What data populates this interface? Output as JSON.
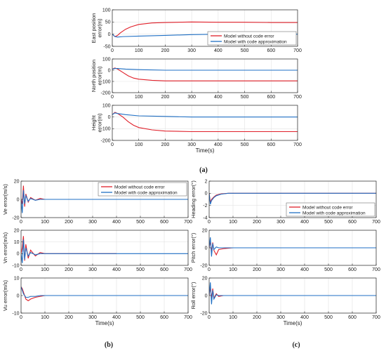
{
  "colors": {
    "red": "#e0202a",
    "blue": "#1f6fc4",
    "grid": "#e3e3e3",
    "axis": "#262626"
  },
  "panel_labels": {
    "a": "(a)",
    "b": "(b)",
    "c": "(c)"
  },
  "chart_data": [
    {
      "id": "a1",
      "type": "line",
      "ylabel": "East position\nerror(m)",
      "xlabel": "",
      "xlim": [
        0,
        700
      ],
      "ylim": [
        -50,
        100
      ],
      "xticks": [
        "0",
        "100",
        "200",
        "300",
        "400",
        "500",
        "600",
        "700"
      ],
      "yticks": [
        "-50",
        "0",
        "50",
        "100"
      ],
      "legend": "bottom-right",
      "series": [
        {
          "name": "Model without code error",
          "x": [
            0,
            10,
            20,
            30,
            50,
            70,
            100,
            150,
            200,
            300,
            400,
            500,
            600,
            700
          ],
          "y": [
            0,
            -10,
            -5,
            5,
            20,
            30,
            40,
            46,
            48,
            50,
            49,
            49,
            48,
            48
          ]
        },
        {
          "name": "Model with code approximation",
          "x": [
            0,
            10,
            20,
            40,
            100,
            200,
            300,
            400,
            500,
            600,
            700
          ],
          "y": [
            0,
            -10,
            -12,
            -10,
            -8,
            -5,
            -2,
            0,
            0,
            0,
            0
          ]
        }
      ]
    },
    {
      "id": "a2",
      "type": "line",
      "ylabel": "North position\nerror(m)",
      "xlabel": "",
      "xlim": [
        0,
        700
      ],
      "ylim": [
        -200,
        100
      ],
      "xticks": [
        "0",
        "100",
        "200",
        "300",
        "400",
        "500",
        "600",
        "700"
      ],
      "yticks": [
        "-200",
        "-100",
        "0",
        "100"
      ],
      "series": [
        {
          "name": "Model without code error",
          "x": [
            0,
            10,
            20,
            40,
            60,
            80,
            100,
            150,
            200,
            300,
            400,
            500,
            600,
            700
          ],
          "y": [
            10,
            20,
            10,
            -20,
            -50,
            -70,
            -80,
            -90,
            -95,
            -95,
            -95,
            -95,
            -95,
            -95
          ]
        },
        {
          "name": "Model with code approximation",
          "x": [
            0,
            10,
            20,
            50,
            100,
            200,
            300,
            400,
            500,
            600,
            700
          ],
          "y": [
            10,
            15,
            15,
            10,
            5,
            0,
            0,
            0,
            0,
            0,
            0
          ]
        }
      ]
    },
    {
      "id": "a3",
      "type": "line",
      "ylabel": "Height\nerror(m)",
      "xlabel": "Time(s)",
      "xlim": [
        0,
        700
      ],
      "ylim": [
        -200,
        100
      ],
      "xticks": [
        "0",
        "100",
        "200",
        "300",
        "400",
        "500",
        "600",
        "700"
      ],
      "yticks": [
        "-200",
        "-100",
        "0",
        "100"
      ],
      "series": [
        {
          "name": "Model without code error",
          "x": [
            0,
            10,
            20,
            40,
            60,
            80,
            100,
            150,
            200,
            300,
            400,
            500,
            600,
            700
          ],
          "y": [
            20,
            40,
            30,
            0,
            -40,
            -70,
            -90,
            -110,
            -120,
            -125,
            -125,
            -125,
            -125,
            -125
          ]
        },
        {
          "name": "Model with code approximation",
          "x": [
            0,
            10,
            20,
            50,
            100,
            200,
            300,
            400,
            500,
            600,
            700
          ],
          "y": [
            20,
            35,
            30,
            20,
            10,
            5,
            0,
            0,
            0,
            0,
            0
          ]
        }
      ]
    },
    {
      "id": "b1",
      "type": "line",
      "ylabel": "Ve error(m/s)",
      "xlabel": "",
      "xlim": [
        0,
        700
      ],
      "ylim": [
        -20,
        20
      ],
      "xticks": [
        "0",
        "100",
        "200",
        "300",
        "400",
        "500",
        "600",
        "700"
      ],
      "yticks": [
        "-20",
        "0",
        "20"
      ],
      "legend": "top-right",
      "series": [
        {
          "name": "Model without code error",
          "x": [
            0,
            5,
            10,
            15,
            20,
            30,
            40,
            60,
            80,
            100,
            150,
            200,
            300,
            400
          ],
          "y": [
            0,
            -5,
            15,
            -8,
            6,
            -3,
            2,
            -1,
            1,
            0,
            0,
            0,
            0,
            0
          ]
        },
        {
          "name": "Model with code approximation",
          "x": [
            0,
            5,
            10,
            15,
            20,
            30,
            40,
            60,
            80,
            100,
            150,
            200,
            300,
            400,
            500,
            600,
            700
          ],
          "y": [
            0,
            -15,
            10,
            -5,
            4,
            -2,
            1,
            -1,
            0,
            0,
            0,
            0,
            0,
            0,
            0,
            0,
            0
          ]
        }
      ]
    },
    {
      "id": "b2",
      "type": "line",
      "ylabel": "Vn error(m/s)",
      "xlabel": "",
      "xlim": [
        0,
        700
      ],
      "ylim": [
        -10,
        20
      ],
      "xticks": [
        "0",
        "100",
        "200",
        "300",
        "400",
        "500",
        "600",
        "700"
      ],
      "yticks": [
        "-10",
        "0",
        "10",
        "20"
      ],
      "series": [
        {
          "name": "Model without code error",
          "x": [
            0,
            5,
            10,
            15,
            20,
            30,
            40,
            60,
            80,
            100,
            150,
            200,
            300,
            400
          ],
          "y": [
            0,
            5,
            15,
            -6,
            8,
            -4,
            3,
            -2,
            1,
            0,
            0,
            0,
            0,
            0
          ]
        },
        {
          "name": "Model with code approximation",
          "x": [
            0,
            5,
            10,
            15,
            20,
            30,
            40,
            60,
            80,
            100,
            150,
            200,
            300,
            400,
            500,
            600,
            700
          ],
          "y": [
            0,
            -8,
            12,
            -5,
            5,
            -2,
            1,
            -1,
            0,
            0,
            0,
            0,
            0,
            0,
            0,
            0,
            0
          ]
        }
      ]
    },
    {
      "id": "b3",
      "type": "line",
      "ylabel": "Vu error(m/s)",
      "xlabel": "Time(s)",
      "xlim": [
        0,
        700
      ],
      "ylim": [
        -10,
        10
      ],
      "xticks": [
        "0",
        "100",
        "200",
        "300",
        "400",
        "500",
        "600",
        "700"
      ],
      "yticks": [
        "-10",
        "0",
        "10"
      ],
      "series": [
        {
          "name": "Model without code error",
          "x": [
            0,
            5,
            10,
            20,
            30,
            40,
            60,
            80,
            100,
            150,
            200,
            300,
            400
          ],
          "y": [
            5,
            4,
            2,
            -2,
            -3,
            -2,
            -1,
            -0.5,
            0,
            0,
            0,
            0,
            0
          ]
        },
        {
          "name": "Model with code approximation",
          "x": [
            0,
            5,
            10,
            20,
            30,
            40,
            60,
            80,
            100,
            150,
            200,
            300,
            400,
            500,
            600,
            700
          ],
          "y": [
            5,
            3,
            1,
            -1,
            -1,
            -0.5,
            -0.5,
            0,
            0,
            0,
            0,
            0,
            0,
            0,
            0,
            0
          ]
        }
      ]
    },
    {
      "id": "c1",
      "type": "line",
      "ylabel": "Heading error(°)",
      "xlabel": "",
      "xlim": [
        0,
        700
      ],
      "ylim": [
        -4,
        2
      ],
      "xticks": [
        "0",
        "100",
        "200",
        "300",
        "400",
        "500",
        "600",
        "700"
      ],
      "yticks": [
        "-4",
        "-2",
        "0",
        "2"
      ],
      "legend": "bottom-right",
      "series": [
        {
          "name": "Model without code error",
          "x": [
            0,
            5,
            10,
            20,
            30,
            50,
            80,
            100,
            200,
            300,
            400,
            500,
            600,
            700
          ],
          "y": [
            0,
            -1.5,
            -1,
            -0.6,
            -0.3,
            -0.1,
            0,
            0,
            0,
            0,
            0,
            0,
            0,
            0
          ]
        },
        {
          "name": "Model with code approximation",
          "x": [
            0,
            5,
            10,
            20,
            30,
            50,
            80,
            100,
            200,
            300,
            400,
            500,
            600,
            700
          ],
          "y": [
            0,
            -1.8,
            -1.2,
            -0.7,
            -0.4,
            -0.15,
            0,
            0,
            0,
            0,
            0,
            0,
            0,
            0
          ]
        }
      ]
    },
    {
      "id": "c2",
      "type": "line",
      "ylabel": "Pitch error(°)",
      "xlabel": "",
      "xlim": [
        0,
        700
      ],
      "ylim": [
        -20,
        20
      ],
      "xticks": [
        "0",
        "100",
        "200",
        "300",
        "400",
        "500",
        "600",
        "700"
      ],
      "yticks": [
        "-20",
        "0",
        "20"
      ],
      "series": [
        {
          "name": "Model without code error",
          "x": [
            0,
            5,
            10,
            15,
            20,
            30,
            40,
            60,
            100,
            200,
            300,
            400,
            500,
            600,
            700
          ],
          "y": [
            0,
            8,
            -5,
            6,
            -3,
            -8,
            -2,
            -1,
            0,
            0,
            0,
            0,
            0,
            0,
            0
          ]
        },
        {
          "name": "Model with code approximation",
          "x": [
            0,
            5,
            10,
            15,
            20,
            30,
            40,
            60,
            100,
            200,
            300,
            400,
            500,
            600,
            700
          ],
          "y": [
            0,
            12,
            -10,
            5,
            -2,
            1,
            0,
            0,
            0,
            0,
            0,
            0,
            0,
            0,
            0
          ]
        }
      ]
    },
    {
      "id": "c3",
      "type": "line",
      "ylabel": "Roll error(°)",
      "xlabel": "Time(s)",
      "xlim": [
        0,
        700
      ],
      "ylim": [
        -20,
        20
      ],
      "xticks": [
        "0",
        "100",
        "200",
        "300",
        "400",
        "500",
        "600",
        "700"
      ],
      "yticks": [
        "-20",
        "0",
        "20"
      ],
      "series": [
        {
          "name": "Model without code error",
          "x": [
            0,
            5,
            10,
            15,
            20,
            30,
            40,
            60,
            100,
            200,
            300,
            400,
            500,
            600,
            700
          ],
          "y": [
            0,
            10,
            -4,
            8,
            -3,
            2,
            -1,
            0,
            0,
            0,
            0,
            0,
            0,
            0,
            0
          ]
        },
        {
          "name": "Model with code approximation",
          "x": [
            0,
            5,
            10,
            15,
            20,
            30,
            40,
            60,
            100,
            200,
            300,
            400,
            500,
            600,
            700
          ],
          "y": [
            0,
            15,
            -10,
            6,
            -4,
            1,
            0,
            0,
            0,
            0,
            0,
            0,
            0,
            0,
            0
          ]
        }
      ]
    }
  ]
}
